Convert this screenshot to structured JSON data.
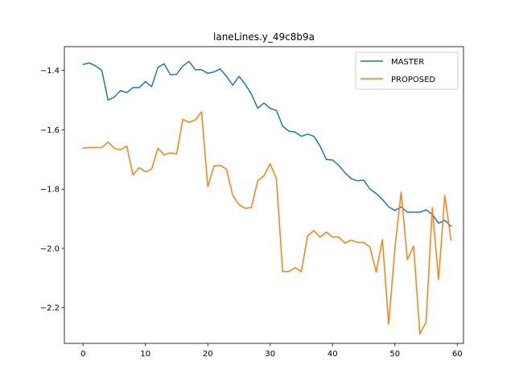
{
  "chart_data": {
    "type": "line",
    "title": "laneLines.y_49c8b9a",
    "xlabel": "",
    "ylabel": "",
    "xlim": [
      -3,
      61
    ],
    "ylim": [
      -2.32,
      -1.32
    ],
    "xticks": [
      0,
      10,
      20,
      30,
      40,
      50,
      60
    ],
    "yticks": [
      -2.2,
      -2.0,
      -1.8,
      -1.6,
      -1.4
    ],
    "ytick_labels": [
      "−2.2",
      "−2.0",
      "−1.8",
      "−1.6",
      "−1.4"
    ],
    "legend_position": "upper right",
    "series": [
      {
        "name": "MASTER",
        "color": "#1f77b4",
        "x": [
          0,
          1,
          2,
          3,
          4,
          5,
          6,
          7,
          8,
          9,
          10,
          11,
          12,
          13,
          14,
          15,
          16,
          17,
          18,
          19,
          20,
          21,
          22,
          23,
          24,
          25,
          26,
          27,
          28,
          29,
          30,
          31,
          32,
          33,
          34,
          35,
          36,
          37,
          38,
          39,
          40,
          41,
          42,
          43,
          44,
          45,
          46,
          47,
          48,
          49,
          50,
          51,
          52,
          53,
          54,
          55,
          56,
          57,
          58,
          59
        ],
        "values": [
          -1.38,
          -1.375,
          -1.385,
          -1.4,
          -1.5,
          -1.49,
          -1.468,
          -1.475,
          -1.458,
          -1.458,
          -1.438,
          -1.455,
          -1.39,
          -1.378,
          -1.415,
          -1.413,
          -1.385,
          -1.37,
          -1.398,
          -1.398,
          -1.41,
          -1.405,
          -1.395,
          -1.42,
          -1.45,
          -1.42,
          -1.447,
          -1.48,
          -1.528,
          -1.51,
          -1.528,
          -1.535,
          -1.588,
          -1.605,
          -1.608,
          -1.622,
          -1.615,
          -1.622,
          -1.655,
          -1.7,
          -1.702,
          -1.72,
          -1.745,
          -1.765,
          -1.772,
          -1.77,
          -1.8,
          -1.815,
          -1.835,
          -1.86,
          -1.872,
          -1.86,
          -1.878,
          -1.878,
          -1.878,
          -1.87,
          -1.885,
          -1.915,
          -1.905,
          -1.925
        ]
      },
      {
        "name": "PROPOSED",
        "color": "#ff7f0e",
        "x": [
          0,
          1,
          2,
          3,
          4,
          5,
          6,
          7,
          8,
          9,
          10,
          11,
          12,
          13,
          14,
          15,
          16,
          17,
          18,
          19,
          20,
          21,
          22,
          23,
          24,
          25,
          26,
          27,
          28,
          29,
          30,
          31,
          32,
          33,
          34,
          35,
          36,
          37,
          38,
          39,
          40,
          41,
          42,
          43,
          44,
          45,
          46,
          47,
          48,
          49,
          50,
          51,
          52,
          53,
          54,
          55,
          56,
          57,
          58,
          59
        ],
        "values": [
          -1.662,
          -1.66,
          -1.66,
          -1.66,
          -1.642,
          -1.662,
          -1.668,
          -1.655,
          -1.752,
          -1.728,
          -1.742,
          -1.733,
          -1.662,
          -1.685,
          -1.678,
          -1.682,
          -1.565,
          -1.575,
          -1.567,
          -1.54,
          -1.792,
          -1.722,
          -1.72,
          -1.733,
          -1.822,
          -1.852,
          -1.865,
          -1.862,
          -1.772,
          -1.755,
          -1.715,
          -1.765,
          -2.078,
          -2.078,
          -2.065,
          -2.078,
          -1.958,
          -1.94,
          -1.962,
          -1.945,
          -1.962,
          -1.962,
          -1.982,
          -1.972,
          -1.98,
          -1.98,
          -1.995,
          -2.08,
          -1.97,
          -2.255,
          -2.0,
          -1.81,
          -2.038,
          -1.992,
          -2.288,
          -2.248,
          -1.862,
          -2.105,
          -1.822,
          -1.972
        ]
      }
    ]
  }
}
